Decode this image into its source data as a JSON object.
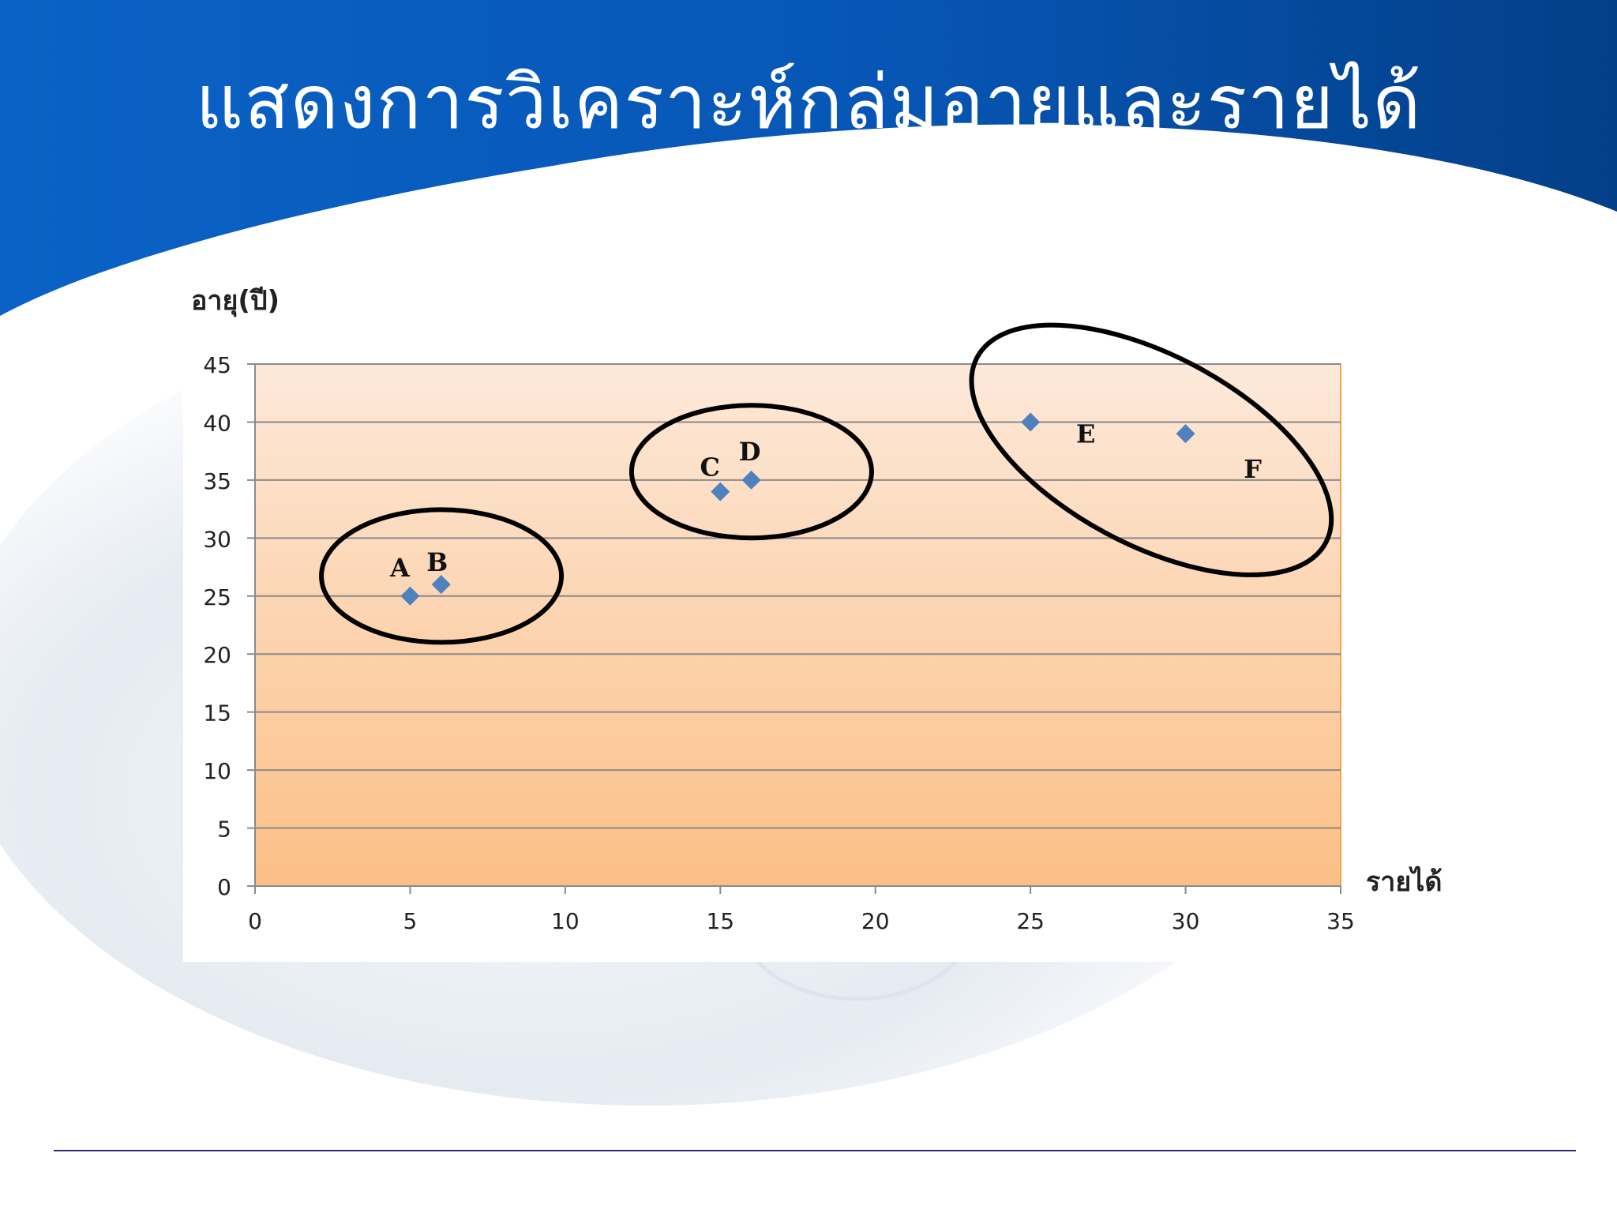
{
  "slide": {
    "title": "แสดงการวิเคราะห์กลุ่มอายุและรายได้",
    "colors": {
      "header_blue": "#0a5fc2",
      "header_dark": "#003f8c",
      "plot_top": "#fde9da",
      "plot_bottom": "#fbbf86",
      "plot_border": "#f5a04a",
      "marker": "#4f81bd",
      "gridline": "#8a8a8a"
    }
  },
  "chart_data": {
    "type": "scatter",
    "xlabel": "รายได้",
    "ylabel": "อายุ(ปี)",
    "xlim": [
      0,
      35
    ],
    "ylim": [
      0,
      45
    ],
    "x_ticks": [
      "0",
      "5",
      "10",
      "15",
      "20",
      "25",
      "30",
      "35"
    ],
    "y_ticks": [
      "0",
      "5",
      "10",
      "15",
      "20",
      "25",
      "30",
      "35",
      "40",
      "45"
    ],
    "grid": true,
    "points": [
      {
        "label": "A",
        "x": 5,
        "y": 25
      },
      {
        "label": "B",
        "x": 6,
        "y": 26
      },
      {
        "label": "C",
        "x": 15,
        "y": 34
      },
      {
        "label": "D",
        "x": 16,
        "y": 35
      },
      {
        "label": "E",
        "x": 25,
        "y": 40
      },
      {
        "label": "F",
        "x": 30,
        "y": 39
      }
    ],
    "clusters": [
      {
        "members": [
          "A",
          "B"
        ]
      },
      {
        "members": [
          "C",
          "D"
        ]
      },
      {
        "members": [
          "E",
          "F"
        ]
      }
    ]
  }
}
